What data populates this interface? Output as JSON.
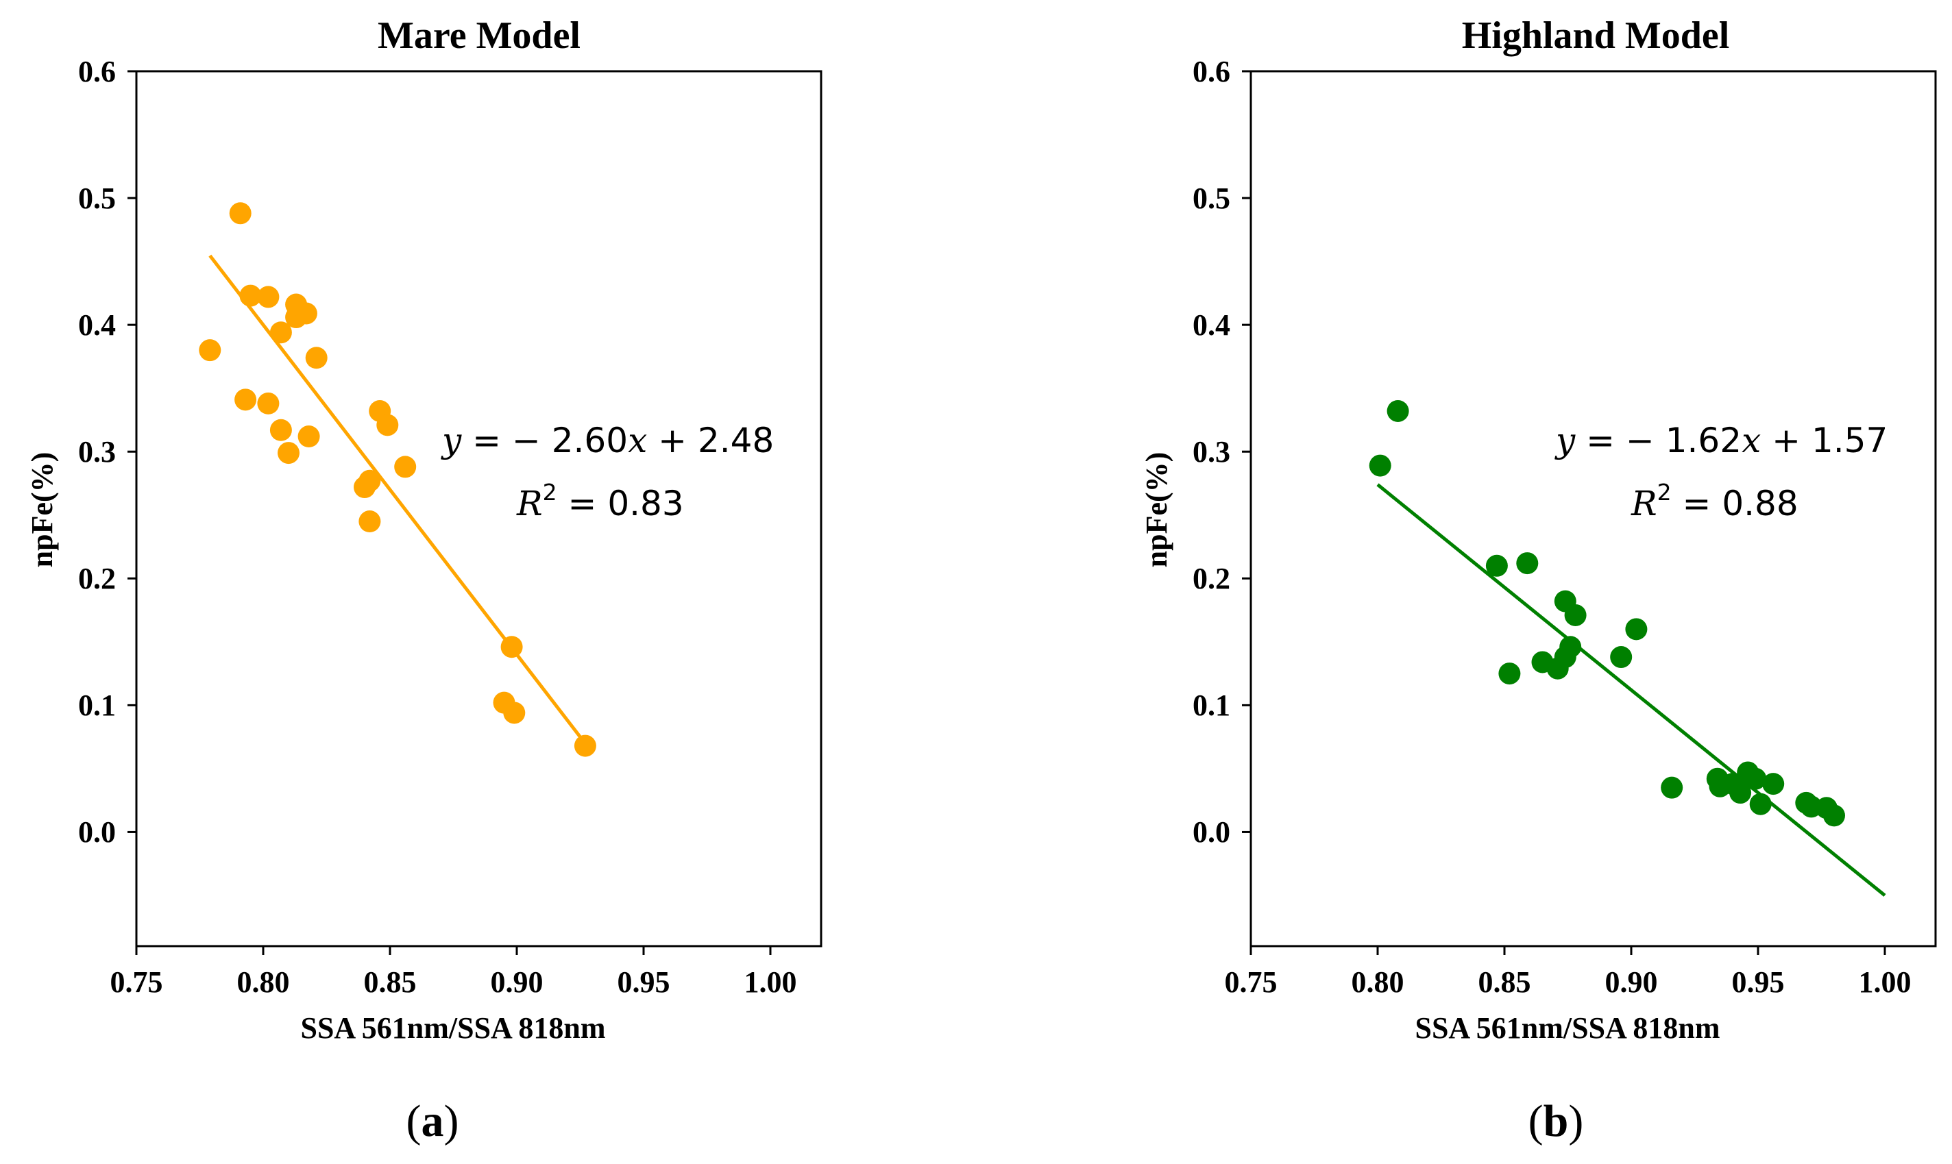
{
  "chart_data": [
    {
      "type": "scatter",
      "title": "Mare Model",
      "xlabel": "SSA 561nm/SSA 818nm",
      "ylabel": "npFe(%)",
      "xlim": [
        0.75,
        1.02
      ],
      "ylim": [
        -0.09,
        0.6
      ],
      "xticks": [
        "0.75",
        "0.80",
        "0.85",
        "0.90",
        "0.95",
        "1.00"
      ],
      "yticks": [
        "0.0",
        "0.1",
        "0.2",
        "0.3",
        "0.4",
        "0.5",
        "0.6"
      ],
      "color": "#FFA500",
      "points": [
        [
          0.779,
          0.38
        ],
        [
          0.791,
          0.488
        ],
        [
          0.793,
          0.341
        ],
        [
          0.795,
          0.423
        ],
        [
          0.802,
          0.422
        ],
        [
          0.802,
          0.338
        ],
        [
          0.807,
          0.394
        ],
        [
          0.807,
          0.317
        ],
        [
          0.81,
          0.299
        ],
        [
          0.813,
          0.416
        ],
        [
          0.813,
          0.406
        ],
        [
          0.817,
          0.409
        ],
        [
          0.818,
          0.312
        ],
        [
          0.821,
          0.374
        ],
        [
          0.84,
          0.272
        ],
        [
          0.842,
          0.277
        ],
        [
          0.842,
          0.245
        ],
        [
          0.846,
          0.332
        ],
        [
          0.849,
          0.321
        ],
        [
          0.856,
          0.288
        ],
        [
          0.895,
          0.102
        ],
        [
          0.898,
          0.146
        ],
        [
          0.899,
          0.094
        ],
        [
          0.927,
          0.068
        ]
      ],
      "fit": {
        "slope": -2.6,
        "intercept": 2.48,
        "x_range": [
          0.779,
          0.927
        ]
      },
      "annotation": {
        "y_lhs": "y",
        "equation_rhs": " = − 2.60",
        "x_var": "x",
        "equation_tail": " + 2.48",
        "r2_lhs": "R",
        "r2_sup": "2",
        "r2_value": " = 0.83"
      },
      "panel_label": "a"
    },
    {
      "type": "scatter",
      "title": "Highland Model",
      "xlabel": "SSA 561nm/SSA 818nm",
      "ylabel": "npFe(%)",
      "xlim": [
        0.75,
        1.02
      ],
      "ylim": [
        -0.09,
        0.6
      ],
      "xticks": [
        "0.75",
        "0.80",
        "0.85",
        "0.90",
        "0.95",
        "1.00"
      ],
      "yticks": [
        "0.0",
        "0.1",
        "0.2",
        "0.3",
        "0.4",
        "0.5",
        "0.6"
      ],
      "color": "#008000",
      "points": [
        [
          0.801,
          0.289
        ],
        [
          0.808,
          0.332
        ],
        [
          0.847,
          0.21
        ],
        [
          0.852,
          0.125
        ],
        [
          0.859,
          0.212
        ],
        [
          0.865,
          0.134
        ],
        [
          0.871,
          0.129
        ],
        [
          0.874,
          0.182
        ],
        [
          0.874,
          0.138
        ],
        [
          0.876,
          0.146
        ],
        [
          0.878,
          0.171
        ],
        [
          0.896,
          0.138
        ],
        [
          0.902,
          0.16
        ],
        [
          0.916,
          0.035
        ],
        [
          0.934,
          0.042
        ],
        [
          0.935,
          0.036
        ],
        [
          0.94,
          0.038
        ],
        [
          0.943,
          0.031
        ],
        [
          0.946,
          0.047
        ],
        [
          0.949,
          0.042
        ],
        [
          0.951,
          0.022
        ],
        [
          0.956,
          0.038
        ],
        [
          0.969,
          0.023
        ],
        [
          0.971,
          0.02
        ],
        [
          0.977,
          0.019
        ],
        [
          0.98,
          0.013
        ]
      ],
      "fit": {
        "slope": -1.62,
        "intercept": 1.57,
        "x_range": [
          0.8,
          1.0
        ]
      },
      "annotation": {
        "y_lhs": "y",
        "equation_rhs": " = − 1.62",
        "x_var": "x",
        "equation_tail": " + 1.57",
        "r2_lhs": "R",
        "r2_sup": "2",
        "r2_value": " = 0.88"
      },
      "panel_label": "b"
    }
  ]
}
